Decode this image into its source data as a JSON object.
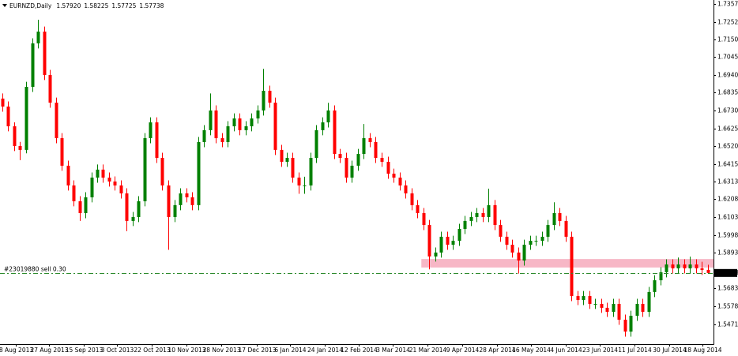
{
  "chart_data": {
    "type": "candlestick",
    "title": "EURNZD,Daily",
    "header_values": [
      {
        "value": 1.5792,
        "label": "1.57920"
      },
      {
        "value": 1.58225,
        "label": "1.58225"
      },
      {
        "value": 1.57725,
        "label": "1.57725"
      },
      {
        "value": 1.57738,
        "label": "1.57738"
      }
    ],
    "up_color": "#008000",
    "down_color": "#ff0000",
    "xlim": [
      -0.4,
      120
    ],
    "ylim": [
      1.5355,
      1.738
    ],
    "yticks": [
      {
        "value": 1.7357,
        "label": "1.73570"
      },
      {
        "value": 1.7252,
        "label": "1.72520"
      },
      {
        "value": 1.715,
        "label": "1.71500"
      },
      {
        "value": 1.7045,
        "label": "1.70450"
      },
      {
        "value": 1.694,
        "label": "1.69400"
      },
      {
        "value": 1.6835,
        "label": "1.68350"
      },
      {
        "value": 1.673,
        "label": "1.67300"
      },
      {
        "value": 1.6625,
        "label": "1.66250"
      },
      {
        "value": 1.652,
        "label": "1.65200"
      },
      {
        "value": 1.6415,
        "label": "1.64150"
      },
      {
        "value": 1.6313,
        "label": "1.63130"
      },
      {
        "value": 1.6208,
        "label": "1.62080"
      },
      {
        "value": 1.6103,
        "label": "1.61030"
      },
      {
        "value": 1.5998,
        "label": "1.59980"
      },
      {
        "value": 1.5893,
        "label": "1.58930"
      },
      {
        "value": 1.5683,
        "label": "1.56830"
      },
      {
        "value": 1.5578,
        "label": "1.55780"
      },
      {
        "value": 1.5471,
        "label": "1.54710"
      }
    ],
    "xticks": [
      {
        "value": 2.3,
        "label": "8 Aug 2013"
      },
      {
        "value": 7.9,
        "label": "27 Aug 2013"
      },
      {
        "value": 13.7,
        "label": "15 Sep 2013"
      },
      {
        "value": 19.3,
        "label": "3 Oct 2013"
      },
      {
        "value": 25.2,
        "label": "22 Oct 2013"
      },
      {
        "value": 31.1,
        "label": "10 Nov 2013"
      },
      {
        "value": 36.9,
        "label": "28 Nov 2013"
      },
      {
        "value": 42.9,
        "label": "17 Dec 2013"
      },
      {
        "value": 48.5,
        "label": "6 Jan 2014"
      },
      {
        "value": 54.4,
        "label": "24 Jan 2014"
      },
      {
        "value": 60.1,
        "label": "12 Feb 2014"
      },
      {
        "value": 65.9,
        "label": "3 Mar 2014"
      },
      {
        "value": 71.7,
        "label": "21 Mar 2014"
      },
      {
        "value": 77.6,
        "label": "9 Apr 2014"
      },
      {
        "value": 83.5,
        "label": "28 Apr 2014"
      },
      {
        "value": 89.2,
        "label": "16 May 2014"
      },
      {
        "value": 95.1,
        "label": "4 Jun 2014"
      },
      {
        "value": 100.8,
        "label": "23 Jun 2014"
      },
      {
        "value": 106.7,
        "label": "11 Jul 2014"
      },
      {
        "value": 112.5,
        "label": "30 Jul 2014"
      },
      {
        "value": 118.1,
        "label": "18 Aug 2014"
      }
    ],
    "zone": {
      "start": 70.7,
      "ylim": [
        1.5806,
        1.5856
      ],
      "color": "#f7b7c6"
    },
    "order": {
      "label": "#23019880 sell 0.30",
      "price": 1.5774,
      "color": "#2e8b2e"
    },
    "last_price": 1.57738,
    "ohlc": [
      [
        1.68,
        1.683,
        1.6723,
        1.6753
      ],
      [
        1.6753,
        1.6783,
        1.6607,
        1.6637
      ],
      [
        1.6637,
        1.666,
        1.6491,
        1.6521
      ],
      [
        1.6521,
        1.6545,
        1.6438,
        1.6498
      ],
      [
        1.6498,
        1.6899,
        1.6478,
        1.6869
      ],
      [
        1.6869,
        1.7155,
        1.6839,
        1.7125
      ],
      [
        1.7125,
        1.7264,
        1.7095,
        1.7194
      ],
      [
        1.7194,
        1.7224,
        1.6909,
        1.6939
      ],
      [
        1.6939,
        1.6969,
        1.6746,
        1.6776
      ],
      [
        1.6776,
        1.6806,
        1.6537,
        1.6567
      ],
      [
        1.6567,
        1.6597,
        1.6375,
        1.6405
      ],
      [
        1.6405,
        1.6435,
        1.6259,
        1.6289
      ],
      [
        1.6289,
        1.6319,
        1.6166,
        1.6196
      ],
      [
        1.6196,
        1.6226,
        1.608,
        1.6126
      ],
      [
        1.6126,
        1.6249,
        1.6096,
        1.6219
      ],
      [
        1.6219,
        1.6365,
        1.6189,
        1.6335
      ],
      [
        1.6335,
        1.6412,
        1.6305,
        1.6382
      ],
      [
        1.6382,
        1.6412,
        1.6305,
        1.6335
      ],
      [
        1.6335,
        1.6365,
        1.6282,
        1.6312
      ],
      [
        1.6312,
        1.6342,
        1.6259,
        1.6289
      ],
      [
        1.6289,
        1.6319,
        1.6212,
        1.6242
      ],
      [
        1.6242,
        1.6272,
        1.602,
        1.608
      ],
      [
        1.608,
        1.6133,
        1.605,
        1.6103
      ],
      [
        1.6103,
        1.6226,
        1.6073,
        1.6196
      ],
      [
        1.6196,
        1.6597,
        1.6166,
        1.6567
      ],
      [
        1.6567,
        1.669,
        1.6537,
        1.666
      ],
      [
        1.666,
        1.669,
        1.6421,
        1.6451
      ],
      [
        1.6451,
        1.6481,
        1.6259,
        1.6289
      ],
      [
        1.6289,
        1.6319,
        1.591,
        1.6103
      ],
      [
        1.6103,
        1.6203,
        1.6073,
        1.6173
      ],
      [
        1.6173,
        1.6272,
        1.6143,
        1.6242
      ],
      [
        1.6242,
        1.6272,
        1.6189,
        1.6219
      ],
      [
        1.6219,
        1.6249,
        1.6143,
        1.6173
      ],
      [
        1.6173,
        1.6574,
        1.6143,
        1.6544
      ],
      [
        1.6544,
        1.6644,
        1.6514,
        1.6614
      ],
      [
        1.6614,
        1.683,
        1.6584,
        1.673
      ],
      [
        1.673,
        1.676,
        1.6537,
        1.6567
      ],
      [
        1.6567,
        1.6597,
        1.6514,
        1.6544
      ],
      [
        1.6544,
        1.6667,
        1.6514,
        1.6637
      ],
      [
        1.6637,
        1.6713,
        1.6607,
        1.6683
      ],
      [
        1.6683,
        1.6713,
        1.6584,
        1.6614
      ],
      [
        1.6614,
        1.6667,
        1.6584,
        1.6637
      ],
      [
        1.6637,
        1.6713,
        1.6607,
        1.6683
      ],
      [
        1.6683,
        1.676,
        1.6653,
        1.673
      ],
      [
        1.673,
        1.6975,
        1.67,
        1.6846
      ],
      [
        1.6846,
        1.6876,
        1.6746,
        1.6776
      ],
      [
        1.6776,
        1.6806,
        1.6468,
        1.6498
      ],
      [
        1.6498,
        1.6528,
        1.6398,
        1.6428
      ],
      [
        1.6428,
        1.6481,
        1.6398,
        1.6451
      ],
      [
        1.6451,
        1.6481,
        1.6305,
        1.6335
      ],
      [
        1.6335,
        1.6365,
        1.624,
        1.6289
      ],
      [
        1.6289,
        1.634,
        1.624,
        1.6289
      ],
      [
        1.6289,
        1.6481,
        1.6259,
        1.6451
      ],
      [
        1.6451,
        1.6644,
        1.6421,
        1.6614
      ],
      [
        1.6614,
        1.669,
        1.6584,
        1.666
      ],
      [
        1.666,
        1.6775,
        1.663,
        1.673
      ],
      [
        1.673,
        1.676,
        1.6444,
        1.6474
      ],
      [
        1.6474,
        1.6504,
        1.6421,
        1.6451
      ],
      [
        1.6451,
        1.6481,
        1.6305,
        1.6335
      ],
      [
        1.6335,
        1.6435,
        1.6305,
        1.6405
      ],
      [
        1.6405,
        1.6504,
        1.6375,
        1.6474
      ],
      [
        1.6474,
        1.665,
        1.6444,
        1.6567
      ],
      [
        1.6567,
        1.6597,
        1.6514,
        1.6544
      ],
      [
        1.6544,
        1.6574,
        1.6421,
        1.6451
      ],
      [
        1.6451,
        1.6481,
        1.6398,
        1.6428
      ],
      [
        1.6428,
        1.6458,
        1.6328,
        1.6358
      ],
      [
        1.6358,
        1.6388,
        1.6305,
        1.6335
      ],
      [
        1.6335,
        1.6365,
        1.6259,
        1.6289
      ],
      [
        1.6289,
        1.6319,
        1.6212,
        1.6242
      ],
      [
        1.6242,
        1.6272,
        1.6143,
        1.6173
      ],
      [
        1.6173,
        1.6203,
        1.6096,
        1.6126
      ],
      [
        1.6126,
        1.6156,
        1.6026,
        1.6056
      ],
      [
        1.6056,
        1.6086,
        1.5795,
        1.5871
      ],
      [
        1.5871,
        1.5924,
        1.5841,
        1.5894
      ],
      [
        1.5894,
        1.6017,
        1.5864,
        1.5987
      ],
      [
        1.5987,
        1.6017,
        1.591,
        1.594
      ],
      [
        1.594,
        1.5993,
        1.591,
        1.5963
      ],
      [
        1.5963,
        1.6063,
        1.5933,
        1.6033
      ],
      [
        1.6033,
        1.611,
        1.6003,
        1.608
      ],
      [
        1.608,
        1.6133,
        1.605,
        1.6103
      ],
      [
        1.6103,
        1.6156,
        1.6073,
        1.6126
      ],
      [
        1.6126,
        1.6156,
        1.6073,
        1.6103
      ],
      [
        1.6103,
        1.627,
        1.6073,
        1.6173
      ],
      [
        1.6173,
        1.6203,
        1.6026,
        1.6056
      ],
      [
        1.6056,
        1.6086,
        1.5957,
        1.5987
      ],
      [
        1.5987,
        1.6017,
        1.591,
        1.594
      ],
      [
        1.594,
        1.597,
        1.5864,
        1.5894
      ],
      [
        1.5894,
        1.5924,
        1.577,
        1.5847
      ],
      [
        1.5847,
        1.597,
        1.5817,
        1.594
      ],
      [
        1.594,
        1.5993,
        1.591,
        1.5963
      ],
      [
        1.5963,
        1.5993,
        1.5933,
        1.5963
      ],
      [
        1.5963,
        1.6017,
        1.5933,
        1.5987
      ],
      [
        1.5987,
        1.6086,
        1.5957,
        1.6056
      ],
      [
        1.6056,
        1.619,
        1.6026,
        1.6126
      ],
      [
        1.6126,
        1.6156,
        1.605,
        1.608
      ],
      [
        1.608,
        1.611,
        1.5957,
        1.5987
      ],
      [
        1.5987,
        1.6017,
        1.5608,
        1.5638
      ],
      [
        1.5638,
        1.5668,
        1.5585,
        1.5615
      ],
      [
        1.5615,
        1.5668,
        1.5585,
        1.5638
      ],
      [
        1.5638,
        1.5668,
        1.5562,
        1.5592
      ],
      [
        1.5592,
        1.5622,
        1.5562,
        1.5592
      ],
      [
        1.5592,
        1.5622,
        1.5539,
        1.5569
      ],
      [
        1.5569,
        1.5599,
        1.5515,
        1.5545
      ],
      [
        1.5545,
        1.5622,
        1.5515,
        1.5592
      ],
      [
        1.5592,
        1.5622,
        1.5469,
        1.5499
      ],
      [
        1.5499,
        1.5529,
        1.5399,
        1.5429
      ],
      [
        1.5429,
        1.5552,
        1.5399,
        1.5522
      ],
      [
        1.5522,
        1.5622,
        1.5492,
        1.5592
      ],
      [
        1.5592,
        1.5622,
        1.5515,
        1.5545
      ],
      [
        1.5545,
        1.5692,
        1.5515,
        1.5662
      ],
      [
        1.5662,
        1.5761,
        1.5632,
        1.5731
      ],
      [
        1.5731,
        1.5808,
        1.5701,
        1.5778
      ],
      [
        1.5778,
        1.5854,
        1.5748,
        1.5824
      ],
      [
        1.5824,
        1.5854,
        1.5771,
        1.5801
      ],
      [
        1.5801,
        1.5865,
        1.5771,
        1.5824
      ],
      [
        1.5824,
        1.5854,
        1.5771,
        1.5801
      ],
      [
        1.5801,
        1.587,
        1.5771,
        1.5824
      ],
      [
        1.5824,
        1.5854,
        1.5771,
        1.5801
      ],
      [
        1.5801,
        1.584,
        1.5762,
        1.5792
      ],
      [
        1.5792,
        1.58225,
        1.57725,
        1.57738
      ]
    ]
  }
}
